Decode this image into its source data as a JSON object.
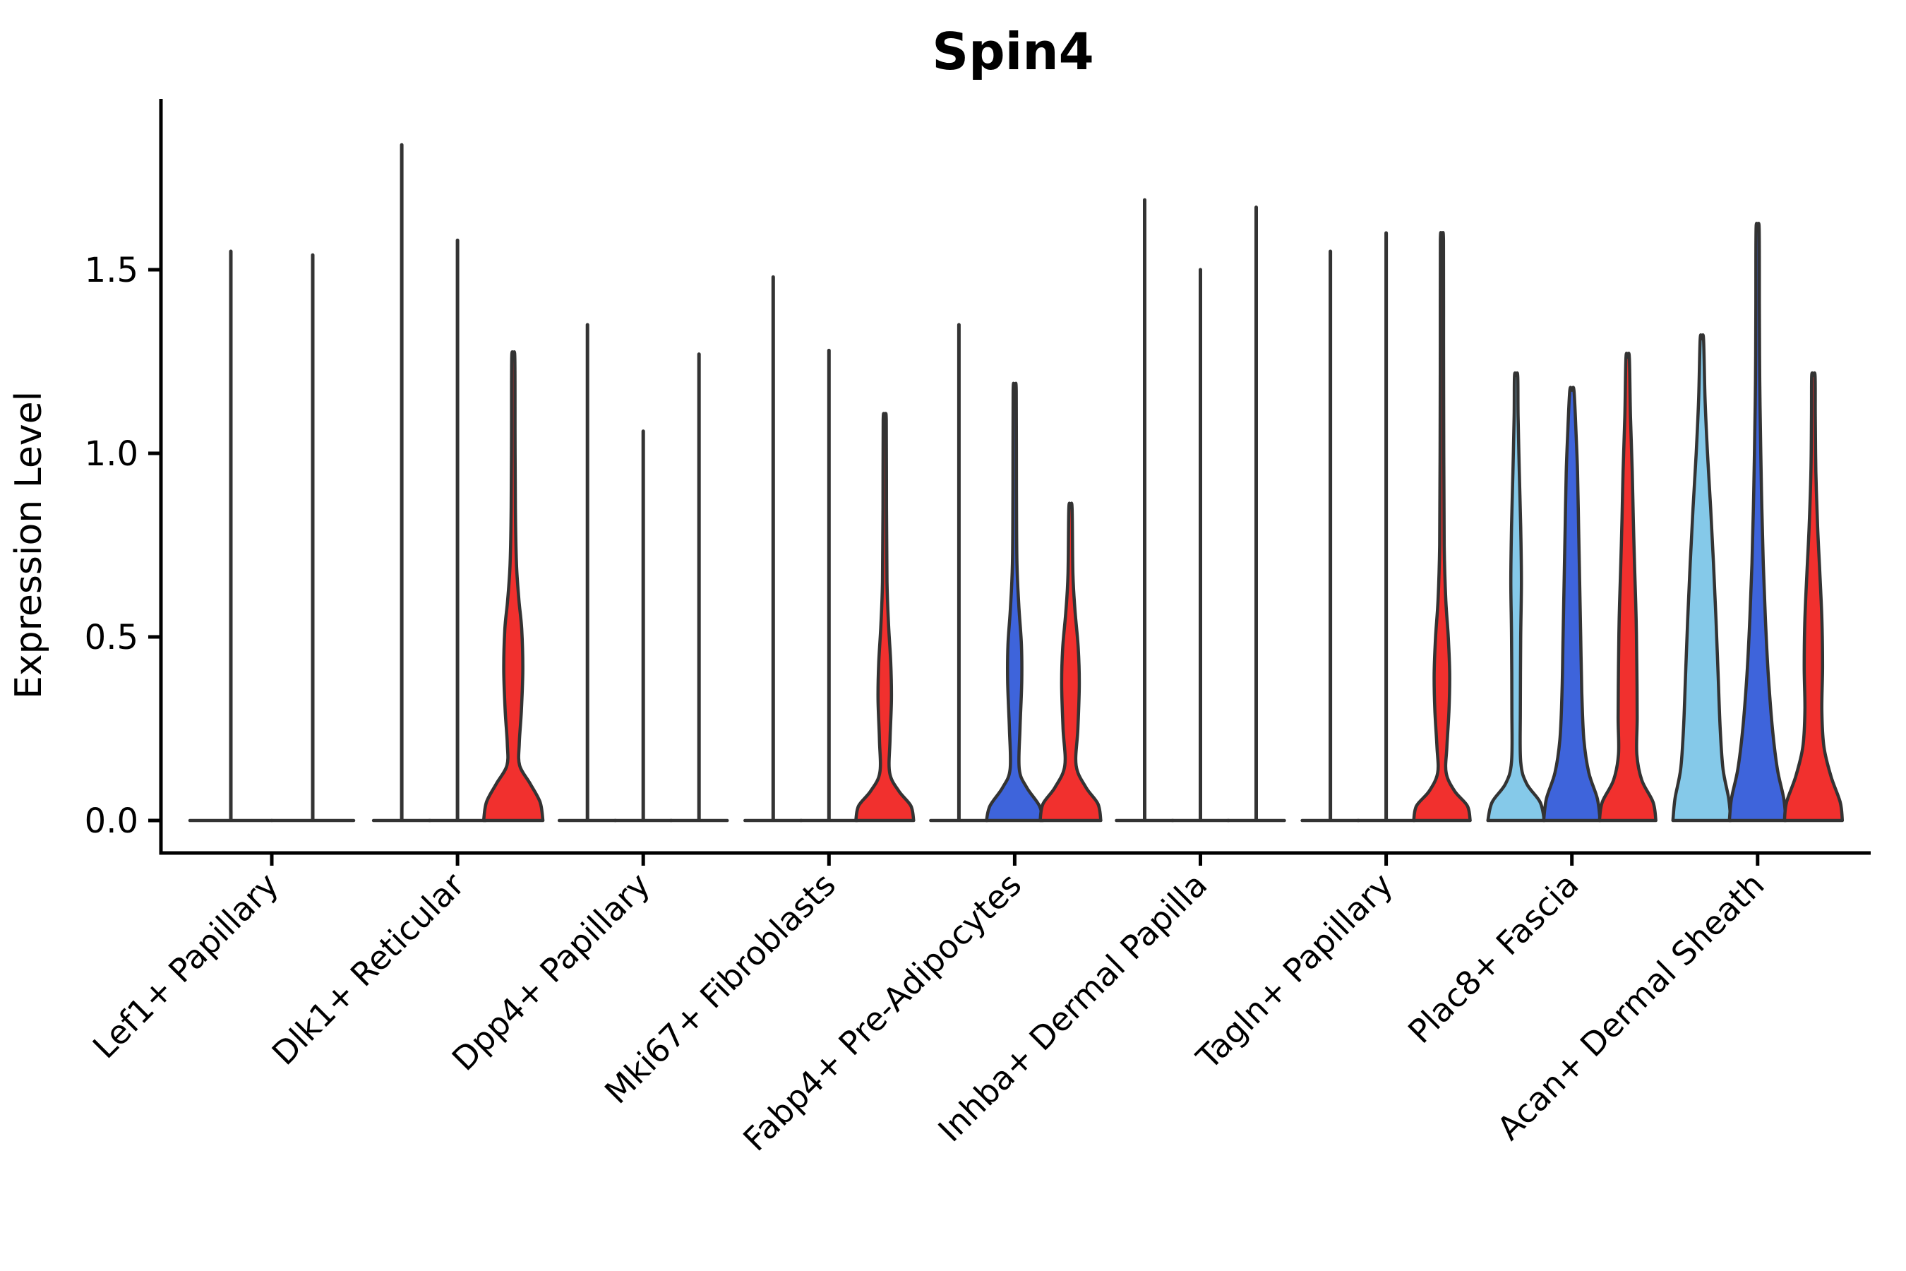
{
  "title": "Spin4",
  "y_axis": {
    "label": "Expression Level",
    "ticks": [
      "0.0",
      "0.5",
      "1.0",
      "1.5"
    ]
  },
  "chart_data": {
    "type": "violin",
    "title": "Spin4",
    "ylabel": "Expression Level",
    "xlabel": "",
    "ylim": [
      -0.09,
      1.97
    ],
    "yticks": [
      0.0,
      0.5,
      1.0,
      1.5
    ],
    "grid": false,
    "legend": "none",
    "split_colors": {
      "light-blue": "#85C9E9",
      "blue": "#3E64DB",
      "red": "#F1302E"
    },
    "outline_color": "#333333",
    "axis_color": "#000000",
    "categories": [
      "Lef1+ Papillary",
      "Dlk1+ Reticular",
      "Dpp4+ Papillary",
      "Mki67+ Fibroblasts",
      "Fabp4+ Pre-Adipocytes",
      "Inhba+ Dermal Papilla",
      "Tagln+ Papillary",
      "Plac8+ Fascia",
      "Acan+ Dermal Sheath"
    ],
    "groups": [
      {
        "category": "Lef1+ Papillary",
        "violins": [
          {
            "slot": 0,
            "offset": -58,
            "half_width": 58,
            "shape": "spike",
            "fill": null,
            "max": 1.55
          },
          {
            "slot": 1,
            "offset": 58,
            "half_width": 58,
            "shape": "spike",
            "fill": null,
            "max": 1.54
          }
        ]
      },
      {
        "category": "Dlk1+ Reticular",
        "violins": [
          {
            "slot": 0,
            "offset": -79,
            "half_width": 40,
            "shape": "spike",
            "fill": null,
            "max": 1.84
          },
          {
            "slot": 1,
            "offset": 0,
            "half_width": 40,
            "shape": "spike",
            "fill": null,
            "max": 1.58
          },
          {
            "slot": 2,
            "offset": 79,
            "half_width": 42,
            "shape": "body",
            "fill": "red",
            "max": 1.26,
            "profile": [
              [
                0,
                42
              ],
              [
                0.05,
                38
              ],
              [
                0.1,
                24
              ],
              [
                0.15,
                9
              ],
              [
                0.21,
                8.5
              ],
              [
                0.3,
                11.5
              ],
              [
                0.41,
                13.5
              ],
              [
                0.52,
                12
              ],
              [
                0.6,
                8
              ],
              [
                0.7,
                4.5
              ],
              [
                0.85,
                3
              ],
              [
                1.05,
                2.5
              ],
              [
                1.26,
                2.2
              ]
            ]
          }
        ]
      },
      {
        "category": "Dpp4+ Papillary",
        "violins": [
          {
            "slot": 0,
            "offset": -79,
            "half_width": 40,
            "shape": "spike",
            "fill": null,
            "max": 1.35
          },
          {
            "slot": 1,
            "offset": 0,
            "half_width": 40,
            "shape": "spike",
            "fill": null,
            "max": 1.06
          },
          {
            "slot": 2,
            "offset": 79,
            "half_width": 40,
            "shape": "spike",
            "fill": null,
            "max": 1.27
          }
        ]
      },
      {
        "category": "Mki67+ Fibroblasts",
        "violins": [
          {
            "slot": 0,
            "offset": -79,
            "half_width": 40,
            "shape": "spike",
            "fill": null,
            "max": 1.48
          },
          {
            "slot": 1,
            "offset": 0,
            "half_width": 40,
            "shape": "spike",
            "fill": null,
            "max": 1.28
          },
          {
            "slot": 2,
            "offset": 79,
            "half_width": 41,
            "shape": "body",
            "fill": "red",
            "max": 1.09,
            "profile": [
              [
                0,
                41
              ],
              [
                0.04,
                37
              ],
              [
                0.08,
                20
              ],
              [
                0.13,
                7
              ],
              [
                0.22,
                7.5
              ],
              [
                0.33,
                9.5
              ],
              [
                0.43,
                8.5
              ],
              [
                0.53,
                5.5
              ],
              [
                0.65,
                3.2
              ],
              [
                0.85,
                2.5
              ],
              [
                1.09,
                2.2
              ]
            ]
          }
        ]
      },
      {
        "category": "Fabp4+ Pre-Adipocytes",
        "violins": [
          {
            "slot": 0,
            "offset": -79,
            "half_width": 40,
            "shape": "spike",
            "fill": null,
            "max": 1.35
          },
          {
            "slot": 1,
            "offset": 0,
            "half_width": 40,
            "shape": "body",
            "fill": "blue",
            "max": 1.17,
            "profile": [
              [
                0,
                40
              ],
              [
                0.04,
                35
              ],
              [
                0.09,
                17
              ],
              [
                0.14,
                6.5
              ],
              [
                0.25,
                7.5
              ],
              [
                0.38,
                10
              ],
              [
                0.48,
                9.5
              ],
              [
                0.58,
                6
              ],
              [
                0.7,
                3.2
              ],
              [
                0.9,
                2.5
              ],
              [
                1.17,
                2.2
              ]
            ]
          },
          {
            "slot": 2,
            "offset": 79,
            "half_width": 43,
            "shape": "body",
            "fill": "red",
            "max": 0.85,
            "profile": [
              [
                0,
                43
              ],
              [
                0.045,
                39
              ],
              [
                0.09,
                22
              ],
              [
                0.15,
                8
              ],
              [
                0.25,
                10.5
              ],
              [
                0.37,
                12.5
              ],
              [
                0.47,
                11
              ],
              [
                0.57,
                6.5
              ],
              [
                0.67,
                3.5
              ],
              [
                0.85,
                2.3
              ]
            ]
          }
        ]
      },
      {
        "category": "Inhba+ Dermal Papilla",
        "violins": [
          {
            "slot": 0,
            "offset": -79,
            "half_width": 40,
            "shape": "spike",
            "fill": null,
            "max": 1.69
          },
          {
            "slot": 1,
            "offset": 0,
            "half_width": 40,
            "shape": "spike",
            "fill": null,
            "max": 1.5
          },
          {
            "slot": 2,
            "offset": 79,
            "half_width": 40,
            "shape": "spike",
            "fill": null,
            "max": 1.67
          }
        ]
      },
      {
        "category": "Tagln+ Papillary",
        "violins": [
          {
            "slot": 0,
            "offset": -79,
            "half_width": 40,
            "shape": "spike",
            "fill": null,
            "max": 1.55
          },
          {
            "slot": 1,
            "offset": 0,
            "half_width": 40,
            "shape": "spike",
            "fill": null,
            "max": 1.6
          },
          {
            "slot": 2,
            "offset": 79,
            "half_width": 40,
            "shape": "body",
            "fill": "red",
            "max": 1.58,
            "profile": [
              [
                0,
                40
              ],
              [
                0.04,
                36
              ],
              [
                0.08,
                18
              ],
              [
                0.13,
                6
              ],
              [
                0.2,
                7
              ],
              [
                0.3,
                10
              ],
              [
                0.4,
                11
              ],
              [
                0.5,
                9
              ],
              [
                0.6,
                5.5
              ],
              [
                0.75,
                3.2
              ],
              [
                1.0,
                2.6
              ],
              [
                1.3,
                2.3
              ],
              [
                1.58,
                2.2
              ]
            ]
          }
        ]
      },
      {
        "category": "Plac8+ Fascia",
        "violins": [
          {
            "slot": 0,
            "offset": -79,
            "half_width": 40,
            "shape": "body",
            "fill": "light-blue",
            "max": 1.21,
            "profile": [
              [
                0,
                40
              ],
              [
                0.05,
                34
              ],
              [
                0.1,
                15
              ],
              [
                0.16,
                6.5
              ],
              [
                0.3,
                6
              ],
              [
                0.5,
                6.5
              ],
              [
                0.65,
                7.5
              ],
              [
                0.8,
                6.5
              ],
              [
                0.95,
                4.5
              ],
              [
                1.1,
                2.8
              ],
              [
                1.21,
                2.3
              ]
            ]
          },
          {
            "slot": 1,
            "offset": 0,
            "half_width": 40,
            "shape": "body",
            "fill": "blue",
            "max": 1.17,
            "profile": [
              [
                0,
                40
              ],
              [
                0.06,
                36
              ],
              [
                0.13,
                24
              ],
              [
                0.22,
                17
              ],
              [
                0.35,
                14
              ],
              [
                0.5,
                12.5
              ],
              [
                0.65,
                11
              ],
              [
                0.8,
                9.5
              ],
              [
                0.95,
                8
              ],
              [
                1.05,
                6
              ],
              [
                1.17,
                3
              ]
            ]
          },
          {
            "slot": 2,
            "offset": 79,
            "half_width": 40,
            "shape": "body",
            "fill": "red",
            "max": 1.26,
            "profile": [
              [
                0,
                40
              ],
              [
                0.05,
                36
              ],
              [
                0.11,
                20
              ],
              [
                0.18,
                13
              ],
              [
                0.28,
                13.5
              ],
              [
                0.42,
                13
              ],
              [
                0.55,
                12
              ],
              [
                0.68,
                10
              ],
              [
                0.82,
                8
              ],
              [
                0.95,
                6.5
              ],
              [
                1.1,
                4
              ],
              [
                1.26,
                2.4
              ]
            ]
          }
        ]
      },
      {
        "category": "Acan+ Dermal Sheath",
        "violins": [
          {
            "slot": 0,
            "offset": -79,
            "half_width": 41,
            "shape": "body",
            "fill": "light-blue",
            "max": 1.31,
            "profile": [
              [
                0,
                41
              ],
              [
                0.06,
                38
              ],
              [
                0.14,
                30
              ],
              [
                0.25,
                26
              ],
              [
                0.4,
                23
              ],
              [
                0.55,
                20
              ],
              [
                0.7,
                16.5
              ],
              [
                0.85,
                12.5
              ],
              [
                1.0,
                8
              ],
              [
                1.15,
                4.5
              ],
              [
                1.31,
                2.4
              ]
            ]
          },
          {
            "slot": 1,
            "offset": 0,
            "half_width": 40,
            "shape": "body",
            "fill": "blue",
            "max": 1.61,
            "profile": [
              [
                0,
                40
              ],
              [
                0.06,
                37
              ],
              [
                0.14,
                28
              ],
              [
                0.25,
                21
              ],
              [
                0.4,
                15
              ],
              [
                0.55,
                11
              ],
              [
                0.7,
                8
              ],
              [
                0.85,
                6
              ],
              [
                1.0,
                4.5
              ],
              [
                1.2,
                3
              ],
              [
                1.4,
                2.5
              ],
              [
                1.61,
                2.2
              ]
            ]
          },
          {
            "slot": 2,
            "offset": 79,
            "half_width": 41,
            "shape": "body",
            "fill": "red",
            "max": 1.21,
            "profile": [
              [
                0,
                41
              ],
              [
                0.05,
                38
              ],
              [
                0.12,
                25
              ],
              [
                0.2,
                15
              ],
              [
                0.3,
                12
              ],
              [
                0.42,
                13
              ],
              [
                0.55,
                12
              ],
              [
                0.68,
                9
              ],
              [
                0.8,
                6
              ],
              [
                0.95,
                3.5
              ],
              [
                1.1,
                2.7
              ],
              [
                1.21,
                2.4
              ]
            ]
          }
        ]
      }
    ]
  }
}
